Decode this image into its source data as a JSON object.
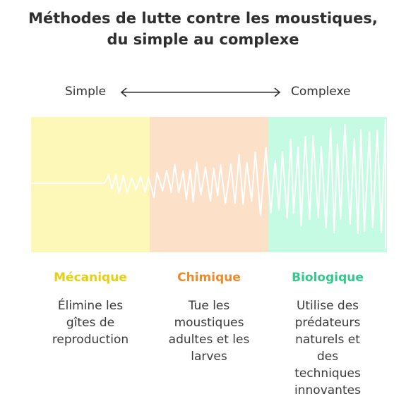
{
  "title": {
    "line1": "Méthodes de lutte contre les moustiques,",
    "line2": "du simple au complexe"
  },
  "scale": {
    "left_label": "Simple",
    "right_label": "Complexe"
  },
  "colors": {
    "mecanique": "#e6cf12",
    "chimique": "#f08a2a",
    "biologique": "#33c98a",
    "panel_mecanique": "#fdf7b8",
    "panel_chimique": "#fde0c8",
    "panel_biologique": "#c5fbe3"
  },
  "categories": [
    {
      "name": "Mécanique",
      "description": "Élimine les gîtes de reproduction"
    },
    {
      "name": "Chimique",
      "description": "Tue les moustiques adultes et les larves"
    },
    {
      "name": "Biologique",
      "description": "Utilise des prédateurs naturels et des techniques innovantes"
    }
  ]
}
